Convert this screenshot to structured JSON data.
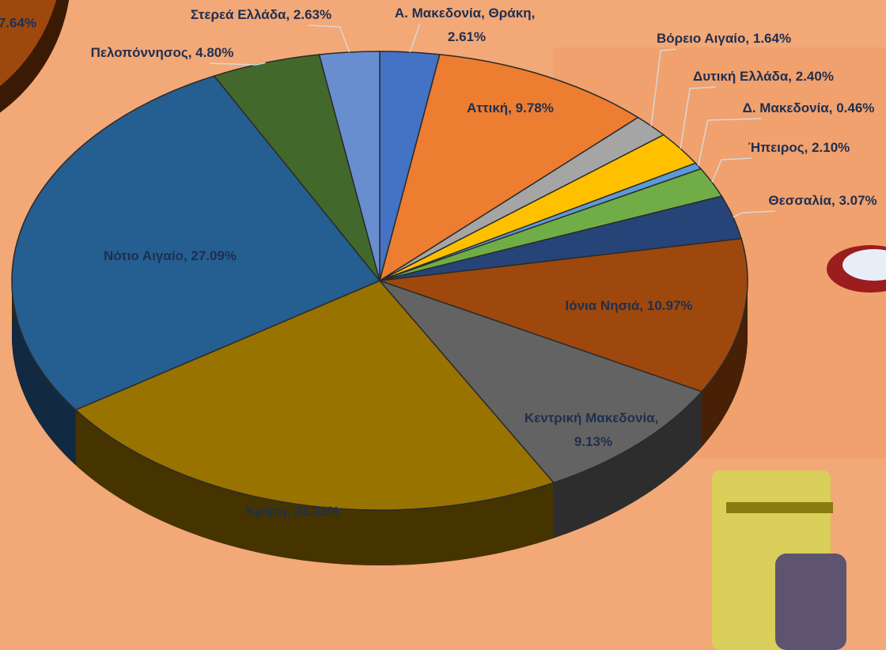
{
  "chart_data": [
    {
      "type": "pie",
      "categories": [
        "Α. Μακεδονία, Θράκη",
        "Αττική",
        "Βόρειο Αιγαίο",
        "Δυτική Ελλάδα",
        "Δ. Μακεδονία",
        "Ήπειρος",
        "Θεσσαλία",
        "Ιόνια Νησιά",
        "Κεντρική Μακεδονία",
        "Κρήτη",
        "Νότιο Αιγαίο",
        "Πελοπόννησος",
        "Στερεά Ελλάδα"
      ],
      "values": [
        2.61,
        9.78,
        1.64,
        2.4,
        0.46,
        2.1,
        3.07,
        10.97,
        9.13,
        23.32,
        27.09,
        4.8,
        2.63
      ],
      "value_labels": [
        "2.61%",
        "9.78%",
        "1.64%",
        "2.40%",
        "0.46%",
        "2.10%",
        "3.07%",
        "10.97%",
        "9.13%",
        "23.32%",
        "27.09%",
        "4.80%",
        "2.63%"
      ],
      "label_separator": ", ",
      "colors": [
        "#4472c4",
        "#ed7d31",
        "#a5a5a5",
        "#ffc000",
        "#5b9bd5",
        "#70ad47",
        "#264478",
        "#9e480e",
        "#636363",
        "#997300",
        "#255e91",
        "#43682b",
        "#698ed0"
      ]
    },
    {
      "type": "pie",
      "values": [
        7.64
      ],
      "value_labels": [
        "7.64%"
      ],
      "colors": [
        "#9e480e"
      ]
    }
  ]
}
